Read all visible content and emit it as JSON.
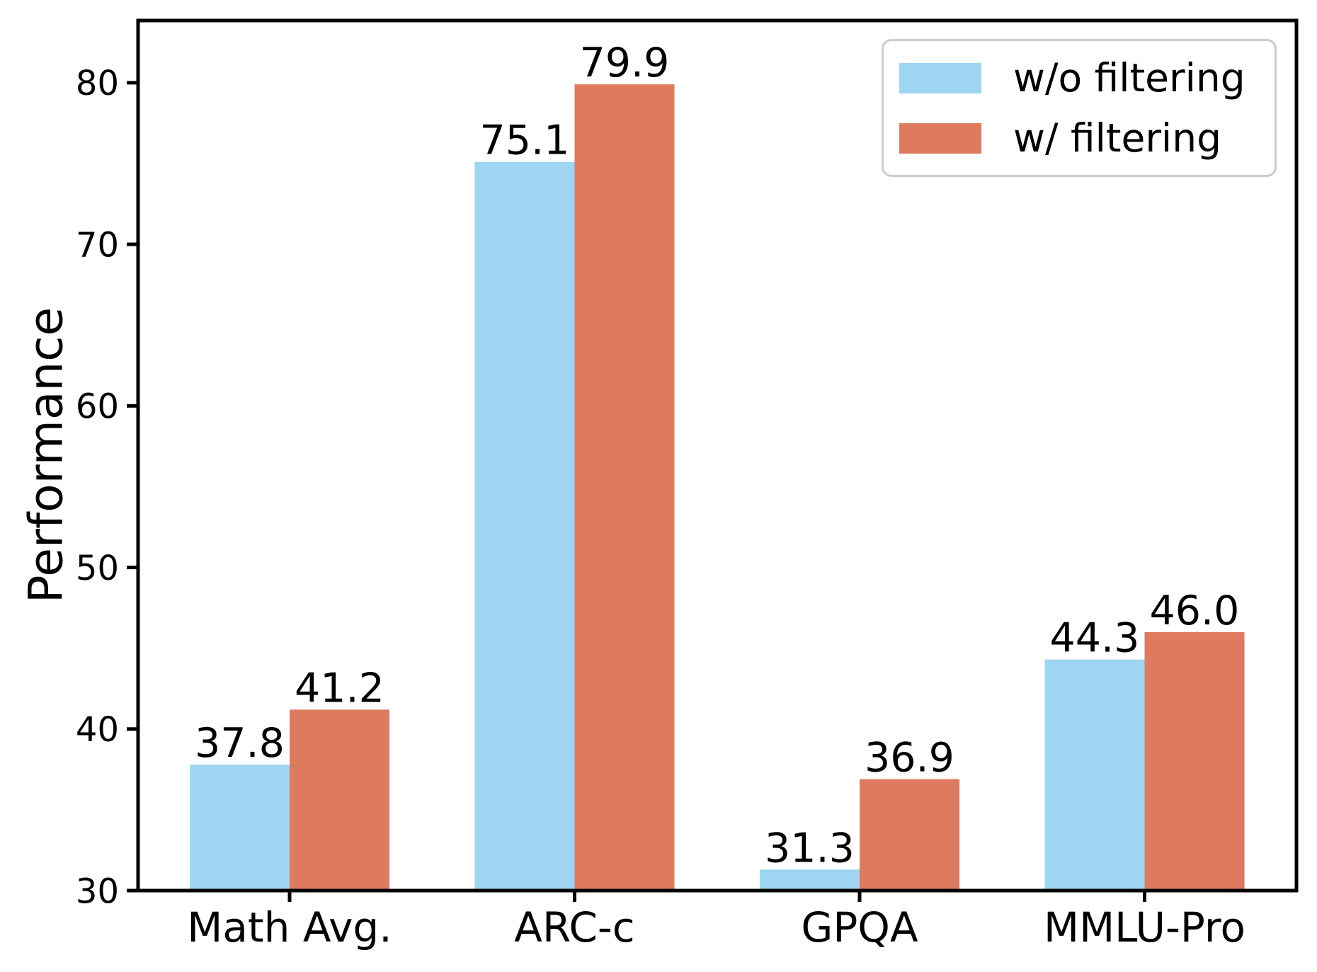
{
  "chart_data": {
    "type": "bar",
    "categories": [
      "Math Avg.",
      "ARC-c",
      "GPQA",
      "MMLU-Pro"
    ],
    "series": [
      {
        "name": "w/o filtering",
        "color": "#9ED5F0",
        "values": [
          37.8,
          75.1,
          31.3,
          44.3
        ]
      },
      {
        "name": "w/ filtering",
        "color": "#DE7B5F",
        "values": [
          41.2,
          79.9,
          36.9,
          46.0
        ]
      }
    ],
    "title": "",
    "xlabel": "",
    "ylabel": "Performance",
    "yticks": [
      30,
      40,
      50,
      60,
      70,
      80
    ],
    "ylim": [
      30,
      83.85
    ],
    "grid": false,
    "legend_position": "upper right",
    "value_labels": true,
    "value_label_decimals": 1,
    "axis_color": "#000000",
    "legend_border_color": "#cccccc"
  }
}
